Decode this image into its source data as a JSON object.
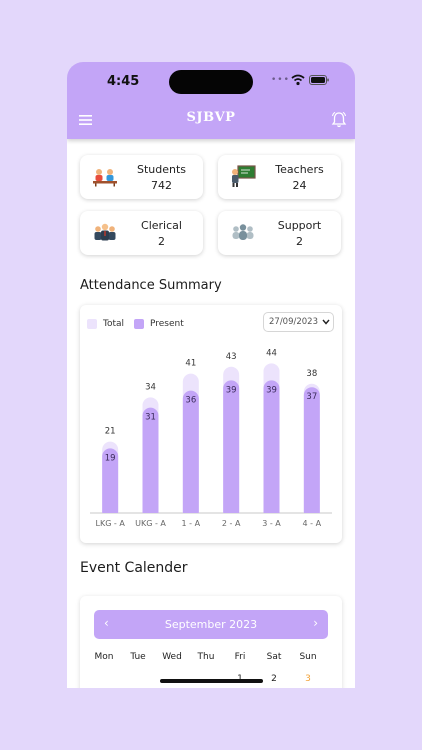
{
  "status_bar": {
    "time": "4:45"
  },
  "header": {
    "title": "SJBVP"
  },
  "stats": [
    {
      "label": "Students",
      "value": "742",
      "icon": "students-icon"
    },
    {
      "label": "Teachers",
      "value": "24",
      "icon": "teacher-icon"
    },
    {
      "label": "Clerical",
      "value": "2",
      "icon": "clerical-icon"
    },
    {
      "label": "Support",
      "value": "2",
      "icon": "support-icon"
    }
  ],
  "attendance": {
    "title": "Attendance Summary",
    "legend_total": "Total",
    "legend_present": "Present",
    "date": "27/09/2023"
  },
  "chart_data": {
    "type": "bar",
    "categories": [
      "LKG - A",
      "UKG - A",
      "1 - A",
      "2 - A",
      "3 - A",
      "4 - A"
    ],
    "series": [
      {
        "name": "Total",
        "values": [
          21,
          34,
          41,
          43,
          44,
          38
        ],
        "color": "#ece3fc"
      },
      {
        "name": "Present",
        "values": [
          19,
          31,
          36,
          39,
          39,
          37
        ],
        "color": "#c3a5f7"
      }
    ],
    "ylim": [
      0,
      50
    ]
  },
  "events": {
    "title": "Event Calender",
    "month": "September 2023",
    "prev": "‹",
    "next": "›",
    "weekdays": [
      "Mon",
      "Tue",
      "Wed",
      "Thu",
      "Fri",
      "Sat",
      "Sun"
    ],
    "first_row": [
      "",
      "",
      "",
      "",
      "1",
      "2",
      "3"
    ]
  },
  "colors": {
    "accent": "#c3a5f7",
    "background": "#e3d7fb",
    "sunday": "#f2a33a"
  }
}
